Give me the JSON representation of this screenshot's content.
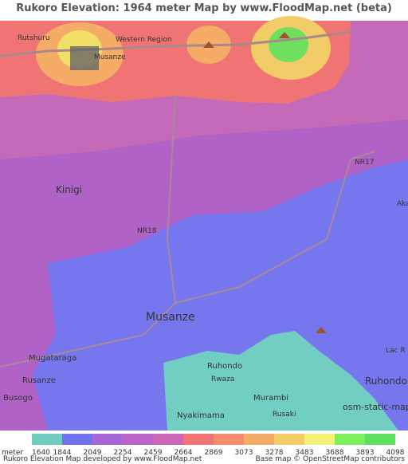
{
  "header": {
    "title": "Rukoro Elevation: 1964 meter Map by www.FloodMap.net (beta)"
  },
  "map": {
    "labels": [
      "Rutshuru",
      "Western Region",
      "Musanze",
      "NR17",
      "Kinigi",
      "Aka",
      "NR18",
      "Musanze",
      "Mugataraga",
      "Rusanze",
      "Busogo",
      "Ruhondo",
      "Rwaza",
      "Murambi",
      "Rusaki",
      "Nyakimama",
      "Ruhondo",
      "Lac R",
      "osm-static-maps"
    ]
  },
  "legend": {
    "unit": "meter",
    "values": [
      1640,
      1844,
      2049,
      2254,
      2459,
      2664,
      2869,
      3073,
      3278,
      3483,
      3688,
      3893,
      4098
    ],
    "colors": [
      "#6fcdc0",
      "#7272ee",
      "#a866d6",
      "#bc62c6",
      "#cc66b8",
      "#f07474",
      "#f58c6c",
      "#f5ac66",
      "#f2cc66",
      "#f2f276",
      "#7ef05e",
      "#5ee05e"
    ]
  },
  "footer": {
    "left": "Rukoro Elevation Map developed by www.FloodMap.net",
    "right": "Base map © OpenStreetMap contributors"
  }
}
